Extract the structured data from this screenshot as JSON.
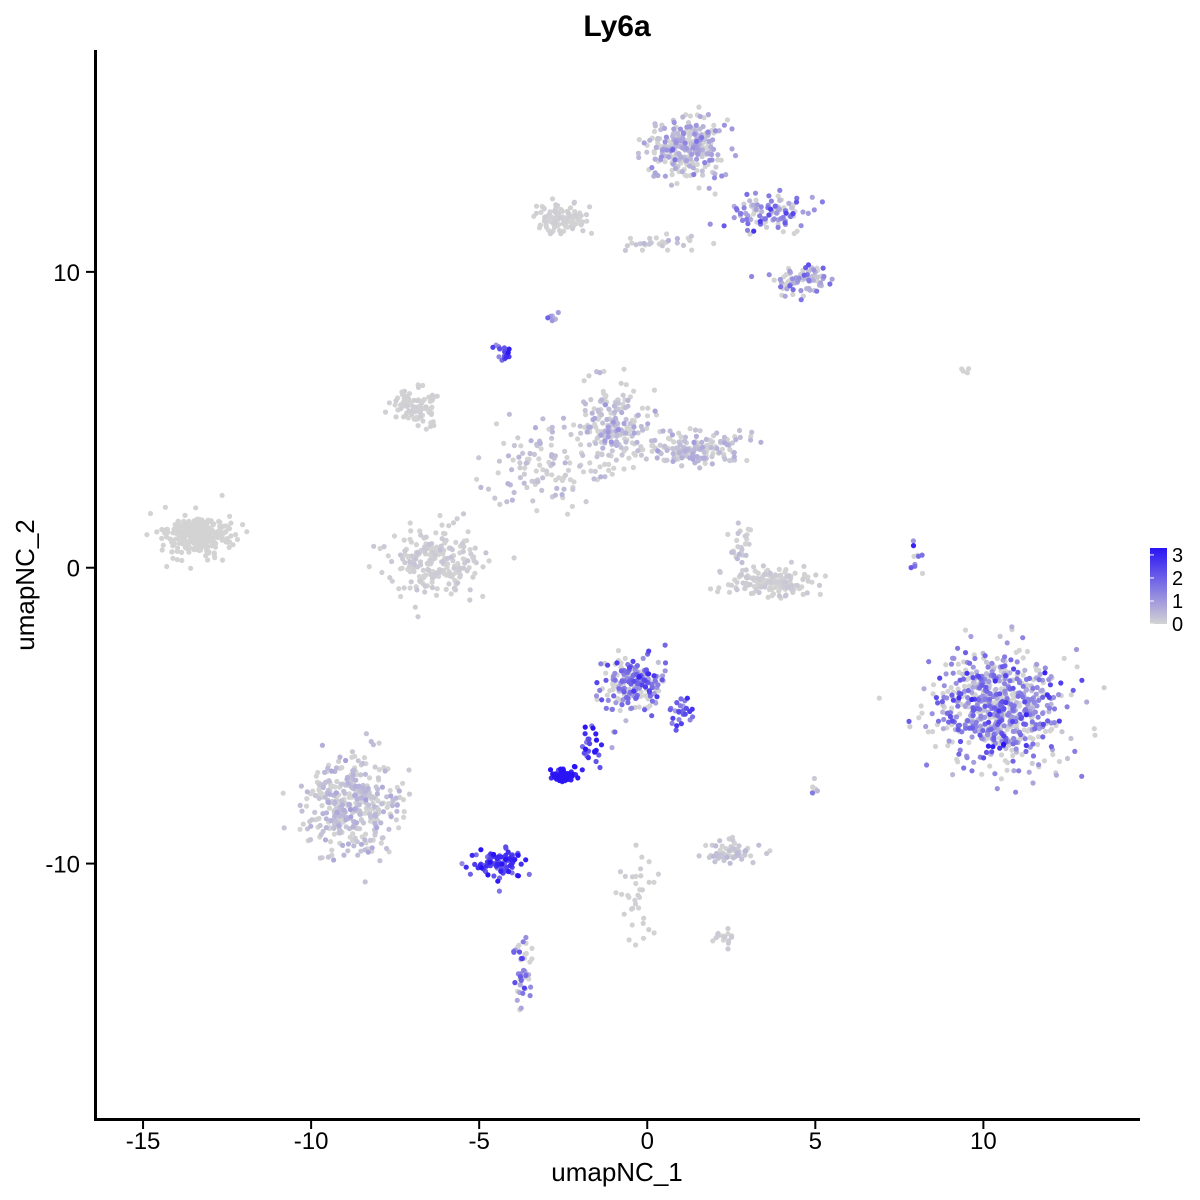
{
  "chart_data": {
    "type": "scatter",
    "title": "Ly6a",
    "xlabel": "umapNC_1",
    "ylabel": "umapNC_2",
    "xlim": [
      -16.4,
      14.6
    ],
    "ylim": [
      -18.6,
      17.5
    ],
    "x_ticks": [
      {
        "value": -15,
        "label": "-15"
      },
      {
        "value": -10,
        "label": "-10"
      },
      {
        "value": -5,
        "label": "-5"
      },
      {
        "value": 0,
        "label": "0"
      },
      {
        "value": 5,
        "label": "5"
      },
      {
        "value": 10,
        "label": "10"
      }
    ],
    "y_ticks": [
      {
        "value": 10,
        "label": "10"
      },
      {
        "value": 0,
        "label": "0"
      },
      {
        "value": -10,
        "label": "-10"
      }
    ],
    "grid": false,
    "legend": {
      "placement": "right",
      "type": "continuous",
      "min": 0,
      "max": 3.3,
      "labels": [
        {
          "value": 3,
          "label": "3"
        },
        {
          "value": 2,
          "label": "2"
        },
        {
          "value": 1,
          "label": "1"
        },
        {
          "value": 0,
          "label": "0"
        }
      ],
      "low_color": "#d3d3d3",
      "high_color": "#2a14f5"
    },
    "point_color_scale": {
      "low": "#d3d3d3",
      "high": "#2a14f5"
    },
    "clusters": [
      {
        "center": [
          10.5,
          -4.8
        ],
        "spread": [
          1.6,
          1.6
        ],
        "expression": 1.3,
        "n": 700
      },
      {
        "center": [
          -0.4,
          -3.9
        ],
        "spread": [
          0.8,
          0.7
        ],
        "expression": 1.6,
        "n": 220
      },
      {
        "center": [
          -2.5,
          -7.0
        ],
        "spread": [
          0.3,
          0.2
        ],
        "expression": 3.2,
        "n": 60
      },
      {
        "center": [
          -8.8,
          -8.0
        ],
        "spread": [
          1.1,
          1.3
        ],
        "expression": 0.3,
        "n": 380
      },
      {
        "center": [
          -4.5,
          -10.0
        ],
        "spread": [
          0.7,
          0.4
        ],
        "expression": 2.3,
        "n": 90
      },
      {
        "center": [
          -3.7,
          -13.5
        ],
        "spread": [
          0.2,
          1.1
        ],
        "expression": 1.4,
        "n": 45
      },
      {
        "center": [
          -13.4,
          1.1
        ],
        "spread": [
          0.9,
          0.6
        ],
        "expression": 0.0,
        "n": 260
      },
      {
        "center": [
          -6.3,
          0.2
        ],
        "spread": [
          1.1,
          0.9
        ],
        "expression": 0.1,
        "n": 230
      },
      {
        "center": [
          -6.9,
          5.4
        ],
        "spread": [
          0.6,
          0.5
        ],
        "expression": 0.05,
        "n": 90
      },
      {
        "center": [
          -1.0,
          4.8
        ],
        "spread": [
          0.9,
          1.2
        ],
        "expression": 0.4,
        "n": 200
      },
      {
        "center": [
          1.4,
          4.0
        ],
        "spread": [
          1.2,
          0.5
        ],
        "expression": 0.35,
        "n": 160
      },
      {
        "center": [
          -3.2,
          3.4
        ],
        "spread": [
          1.5,
          1.2
        ],
        "expression": 0.25,
        "n": 110
      },
      {
        "center": [
          1.2,
          14.2
        ],
        "spread": [
          0.9,
          0.8
        ],
        "expression": 0.6,
        "n": 300
      },
      {
        "center": [
          3.7,
          12.0
        ],
        "spread": [
          1.1,
          0.6
        ],
        "expression": 1.0,
        "n": 110
      },
      {
        "center": [
          4.6,
          9.7
        ],
        "spread": [
          0.7,
          0.5
        ],
        "expression": 0.9,
        "n": 80
      },
      {
        "center": [
          -2.5,
          11.8
        ],
        "spread": [
          0.7,
          0.4
        ],
        "expression": 0.05,
        "n": 110
      },
      {
        "center": [
          0.1,
          11.0
        ],
        "spread": [
          1.0,
          0.3
        ],
        "expression": 0.2,
        "n": 30
      },
      {
        "center": [
          3.6,
          -0.5
        ],
        "spread": [
          1.1,
          0.4
        ],
        "expression": 0.1,
        "n": 150
      },
      {
        "center": [
          2.8,
          0.7
        ],
        "spread": [
          0.3,
          0.6
        ],
        "expression": 0.2,
        "n": 25
      },
      {
        "center": [
          2.5,
          -9.6
        ],
        "spread": [
          0.6,
          0.3
        ],
        "expression": 0.2,
        "n": 60
      },
      {
        "center": [
          2.3,
          -12.5
        ],
        "spread": [
          0.3,
          0.3
        ],
        "expression": 0.1,
        "n": 15
      },
      {
        "center": [
          -0.3,
          -11.0
        ],
        "spread": [
          0.4,
          1.0
        ],
        "expression": 0.05,
        "n": 35
      },
      {
        "center": [
          1.0,
          -5.0
        ],
        "spread": [
          0.3,
          0.5
        ],
        "expression": 1.8,
        "n": 25
      },
      {
        "center": [
          -1.6,
          -5.9
        ],
        "spread": [
          0.4,
          0.7
        ],
        "expression": 2.5,
        "n": 25
      },
      {
        "center": [
          -4.3,
          7.3
        ],
        "spread": [
          0.2,
          0.3
        ],
        "expression": 2.0,
        "n": 15
      },
      {
        "center": [
          8.0,
          0.4
        ],
        "spread": [
          0.2,
          0.5
        ],
        "expression": 1.5,
        "n": 10
      },
      {
        "center": [
          5.0,
          -7.5
        ],
        "spread": [
          0.1,
          0.3
        ],
        "expression": 0.8,
        "n": 6
      },
      {
        "center": [
          -2.8,
          8.5
        ],
        "spread": [
          0.2,
          0.2
        ],
        "expression": 0.9,
        "n": 6
      },
      {
        "center": [
          9.5,
          6.7
        ],
        "spread": [
          0.2,
          0.1
        ],
        "expression": 0.0,
        "n": 4
      }
    ]
  }
}
